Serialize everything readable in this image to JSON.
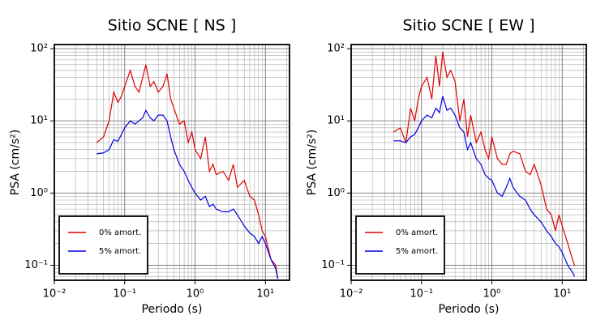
{
  "chart_data": [
    {
      "type": "line",
      "title": "Sitio SCNE [ NS ]",
      "xlabel": "Periodo (s)",
      "ylabel": "PSA (cm/s²)",
      "log_x": true,
      "log_y": true,
      "grid": true,
      "legend": "lower left",
      "xlim": [
        0.01,
        22
      ],
      "ylim": [
        0.062,
        114
      ],
      "xticks": [
        {
          "value": 0.01,
          "label": "10⁻²"
        },
        {
          "value": 0.1,
          "label": "10⁻¹"
        },
        {
          "value": 1,
          "label": "10⁰"
        },
        {
          "value": 10,
          "label": "10¹"
        }
      ],
      "yticks": [
        {
          "value": 0.1,
          "label": "10⁻¹"
        },
        {
          "value": 1,
          "label": "10⁰"
        },
        {
          "value": 10,
          "label": "10¹"
        },
        {
          "value": 100,
          "label": "10²"
        }
      ],
      "x": [
        0.04,
        0.05,
        0.06,
        0.07,
        0.08,
        0.09,
        0.1,
        0.12,
        0.14,
        0.16,
        0.18,
        0.2,
        0.23,
        0.26,
        0.3,
        0.35,
        0.4,
        0.45,
        0.5,
        0.6,
        0.7,
        0.8,
        0.9,
        1,
        1.2,
        1.4,
        1.6,
        1.8,
        2,
        2.5,
        3,
        3.5,
        4,
        5,
        6,
        7,
        8,
        9,
        10,
        12,
        14,
        15
      ],
      "series": [
        {
          "name": "0% amort.",
          "color": "#e00000",
          "values": [
            5,
            6,
            10,
            25,
            18,
            22,
            30,
            50,
            30,
            25,
            40,
            60,
            30,
            35,
            25,
            30,
            45,
            20,
            15,
            9,
            10,
            5,
            7,
            4,
            3,
            6,
            2,
            2.5,
            1.8,
            2,
            1.5,
            2.5,
            1.2,
            1.5,
            0.9,
            0.8,
            0.5,
            0.3,
            0.25,
            0.12,
            0.1,
            0.065
          ]
        },
        {
          "name": "5% amort.",
          "color": "#0000e0",
          "values": [
            3.5,
            3.6,
            4,
            5.5,
            5.2,
            6.5,
            8,
            10,
            9,
            10,
            11,
            14,
            11,
            10,
            12,
            12,
            10,
            6,
            4,
            2.5,
            2,
            1.5,
            1.2,
            1,
            0.8,
            0.9,
            0.65,
            0.7,
            0.6,
            0.55,
            0.55,
            0.6,
            0.5,
            0.35,
            0.28,
            0.25,
            0.2,
            0.25,
            0.2,
            0.12,
            0.09,
            0.065
          ]
        }
      ]
    },
    {
      "type": "line",
      "title": "Sitio SCNE [ EW ]",
      "xlabel": "Periodo (s)",
      "ylabel": "PSA (cm/s²)",
      "log_x": true,
      "log_y": true,
      "grid": true,
      "legend": "lower left",
      "xlim": [
        0.01,
        22
      ],
      "ylim": [
        0.062,
        114
      ],
      "xticks": [
        {
          "value": 0.01,
          "label": "10⁻²"
        },
        {
          "value": 0.1,
          "label": "10⁻¹"
        },
        {
          "value": 1,
          "label": "10⁰"
        },
        {
          "value": 10,
          "label": "10¹"
        }
      ],
      "yticks": [
        {
          "value": 0.1,
          "label": "10⁻¹"
        },
        {
          "value": 1,
          "label": "10⁰"
        },
        {
          "value": 10,
          "label": "10¹"
        },
        {
          "value": 100,
          "label": "10²"
        }
      ],
      "x": [
        0.04,
        0.05,
        0.06,
        0.07,
        0.08,
        0.09,
        0.1,
        0.12,
        0.14,
        0.16,
        0.18,
        0.2,
        0.23,
        0.26,
        0.3,
        0.35,
        0.4,
        0.45,
        0.5,
        0.6,
        0.7,
        0.8,
        0.9,
        1,
        1.2,
        1.4,
        1.6,
        1.8,
        2,
        2.5,
        3,
        3.5,
        4,
        5,
        6,
        7,
        8,
        9,
        10,
        12,
        14,
        15
      ],
      "series": [
        {
          "name": "0% amort.",
          "color": "#e00000",
          "values": [
            7,
            8,
            5,
            15,
            10,
            20,
            30,
            40,
            20,
            80,
            30,
            90,
            40,
            50,
            35,
            10,
            20,
            6,
            12,
            5,
            7,
            4,
            3,
            6,
            3,
            2.5,
            2.5,
            3.5,
            3.8,
            3.5,
            2,
            1.8,
            2.5,
            1.3,
            0.6,
            0.5,
            0.3,
            0.5,
            0.35,
            0.2,
            0.12,
            0.1
          ]
        },
        {
          "name": "5% amort.",
          "color": "#0000e0",
          "values": [
            5.3,
            5.3,
            5,
            6,
            6.5,
            8,
            10,
            12,
            11,
            15,
            13,
            22,
            14,
            15,
            12,
            8,
            7,
            4,
            5,
            3,
            2.5,
            1.8,
            1.6,
            1.5,
            1,
            0.9,
            1.2,
            1.6,
            1.2,
            0.9,
            0.8,
            0.6,
            0.5,
            0.4,
            0.3,
            0.25,
            0.2,
            0.18,
            0.15,
            0.1,
            0.08,
            0.07
          ]
        }
      ]
    }
  ]
}
